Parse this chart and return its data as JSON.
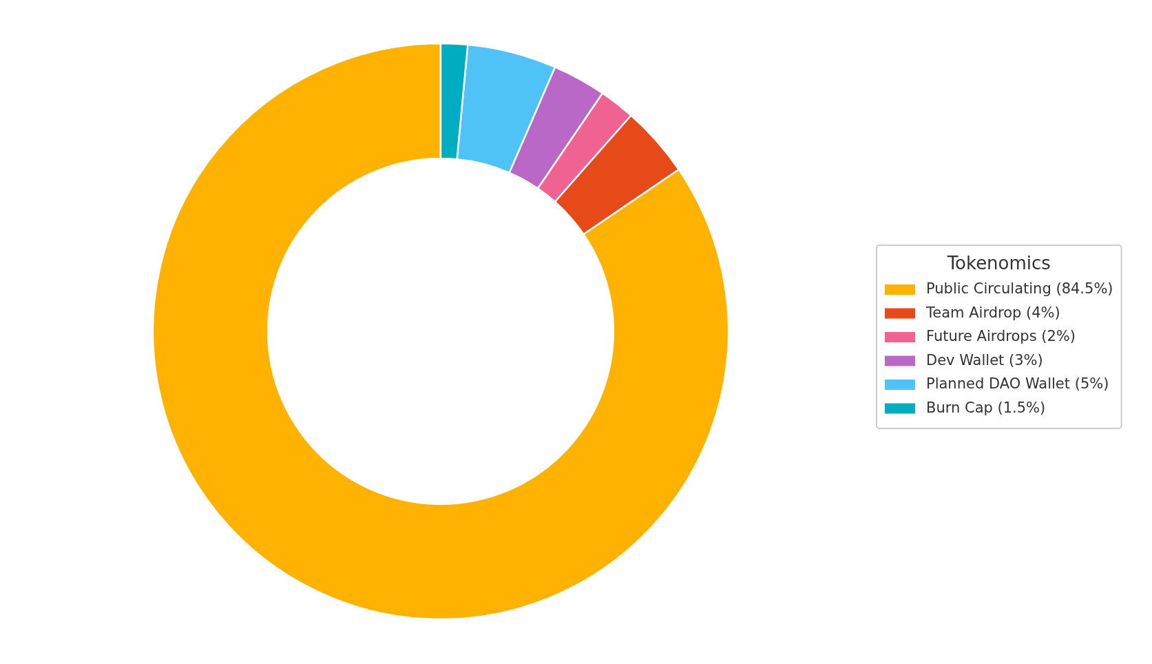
{
  "chart_data": {
    "type": "donut",
    "legend_title": "Tokenomics",
    "legend": "right",
    "categories": [
      "Public Circulating (84.5%)",
      "Team Airdrop (4%)",
      "Future Airdrops (2%)",
      "Dev Wallet (3%)",
      "Planned DAO Wallet (5%)",
      "Burn Cap (1.5%)"
    ],
    "values": [
      84.5,
      4,
      2,
      3,
      5,
      1.5
    ],
    "colors": [
      "#ffb300",
      "#e64a19",
      "#f06292",
      "#ba68c8",
      "#4fc3f7",
      "#00acc1"
    ]
  }
}
